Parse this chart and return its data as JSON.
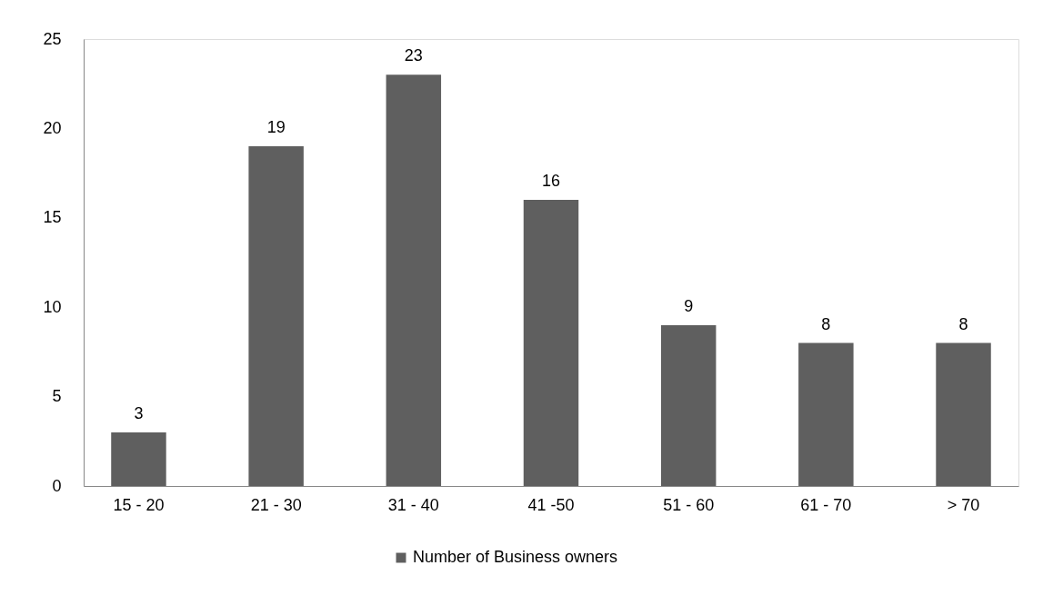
{
  "chart_data": {
    "type": "bar",
    "categories": [
      "15 - 20",
      "21 - 30",
      "31 - 40",
      "41 -50",
      "51 - 60",
      "61 - 70",
      "> 70"
    ],
    "series": [
      {
        "name": "Number of Business owners",
        "color": "#5f5f5f",
        "values": [
          3,
          19,
          23,
          16,
          9,
          8,
          8
        ]
      }
    ],
    "ylim": [
      0,
      25
    ],
    "yticks": [
      0,
      5,
      10,
      15,
      20,
      25
    ],
    "data_labels": true,
    "grid": false,
    "legend": "bottom"
  }
}
